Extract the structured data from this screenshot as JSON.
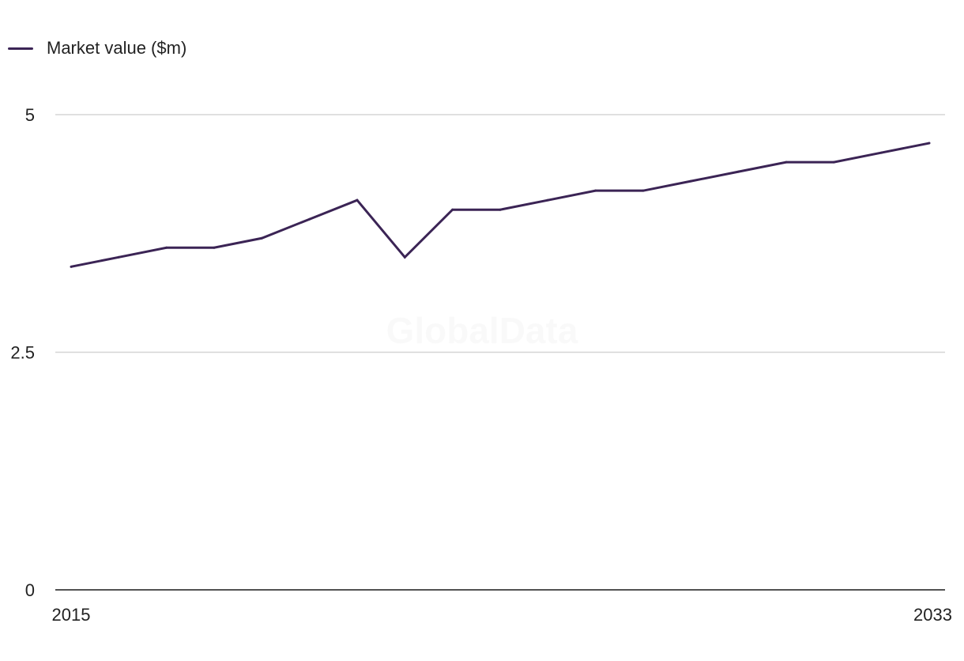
{
  "watermark": "GlobalData",
  "legend": {
    "label": "Market value ($m)",
    "color": "#3b2455"
  },
  "chart_data": {
    "type": "line",
    "title": "",
    "xlabel": "",
    "ylabel": "",
    "x": [
      2015,
      2016,
      2017,
      2018,
      2019,
      2020,
      2021,
      2022,
      2023,
      2024,
      2025,
      2026,
      2027,
      2028,
      2029,
      2030,
      2031,
      2032,
      2033
    ],
    "x_tick_labels": [
      "2015",
      "2033"
    ],
    "y_ticks": [
      0,
      2.5,
      5
    ],
    "y_tick_labels": [
      "0",
      "2.5",
      "5"
    ],
    "ylim": [
      0,
      5
    ],
    "grid": true,
    "legend_position": "top-left",
    "series": [
      {
        "name": "Market value ($m)",
        "color": "#3b2455",
        "values": [
          3.4,
          3.5,
          3.6,
          3.6,
          3.7,
          3.9,
          4.1,
          3.5,
          4.0,
          4.0,
          4.1,
          4.2,
          4.2,
          4.3,
          4.4,
          4.5,
          4.5,
          4.6,
          4.7
        ]
      }
    ]
  }
}
